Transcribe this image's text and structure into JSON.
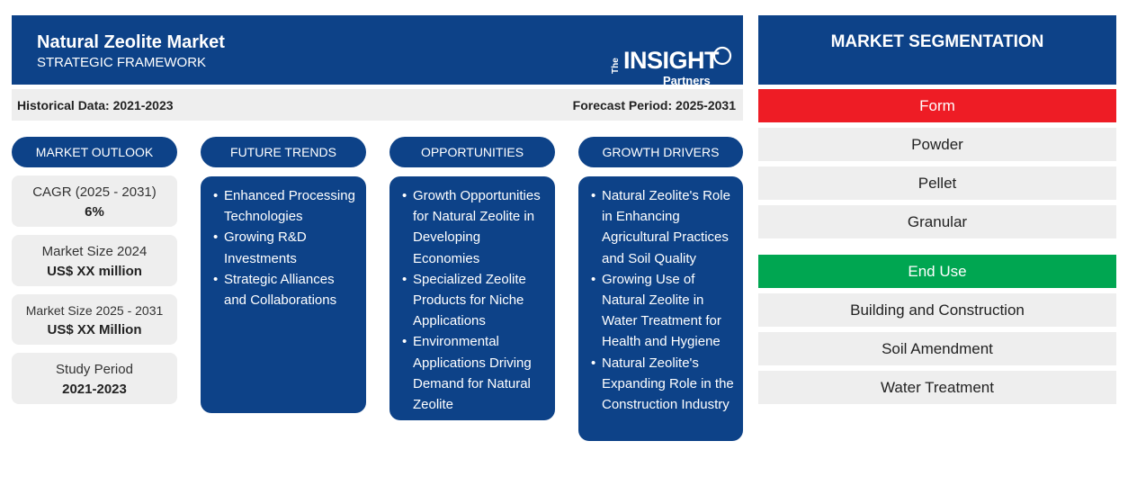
{
  "header": {
    "title": "Natural Zeolite Market",
    "subtitle": "STRATEGIC FRAMEWORK",
    "logo": {
      "the": "The",
      "insight": "INSIGHT",
      "partners": "Partners"
    }
  },
  "infobar": {
    "historical": "Historical Data: 2021-2023",
    "forecast": "Forecast Period: 2025-2031"
  },
  "market_outlook": {
    "title": "MARKET OUTLOOK",
    "stats": [
      {
        "label": "CAGR (2025 - 2031)",
        "value": "6%"
      },
      {
        "label": "Market Size 2024",
        "value": "US$ XX million"
      },
      {
        "label": "Market Size 2025 - 2031",
        "value": "US$ XX Million"
      },
      {
        "label": "Study Period",
        "value": "2021-2023"
      }
    ]
  },
  "future_trends": {
    "title": "FUTURE TRENDS",
    "items": [
      "Enhanced Processing Technologies",
      "Growing R&D Investments",
      "Strategic Alliances and Collaborations"
    ]
  },
  "opportunities": {
    "title": "OPPORTUNITIES",
    "items": [
      "Growth Opportunities for Natural Zeolite in Developing Economies",
      "Specialized Zeolite Products for Niche Applications",
      "Environmental Applications Driving Demand for Natural Zeolite"
    ]
  },
  "growth_drivers": {
    "title": "GROWTH DRIVERS",
    "items": [
      "Natural Zeolite's Role in Enhancing Agricultural Practices and Soil Quality",
      "Growing Use of Natural Zeolite in Water Treatment for Health and Hygiene",
      "Natural Zeolite's Expanding Role in the Construction Industry"
    ]
  },
  "segmentation": {
    "title": "MARKET SEGMENTATION",
    "form": {
      "label": "Form",
      "items": [
        "Powder",
        "Pellet",
        "Granular"
      ]
    },
    "end_use": {
      "label": "End Use",
      "items": [
        "Building and Construction",
        "Soil Amendment",
        "Water Treatment"
      ]
    }
  },
  "colors": {
    "navy": "#0d4288",
    "red": "#ee1c25",
    "green": "#00a651",
    "light_gray": "#eeeeee"
  }
}
